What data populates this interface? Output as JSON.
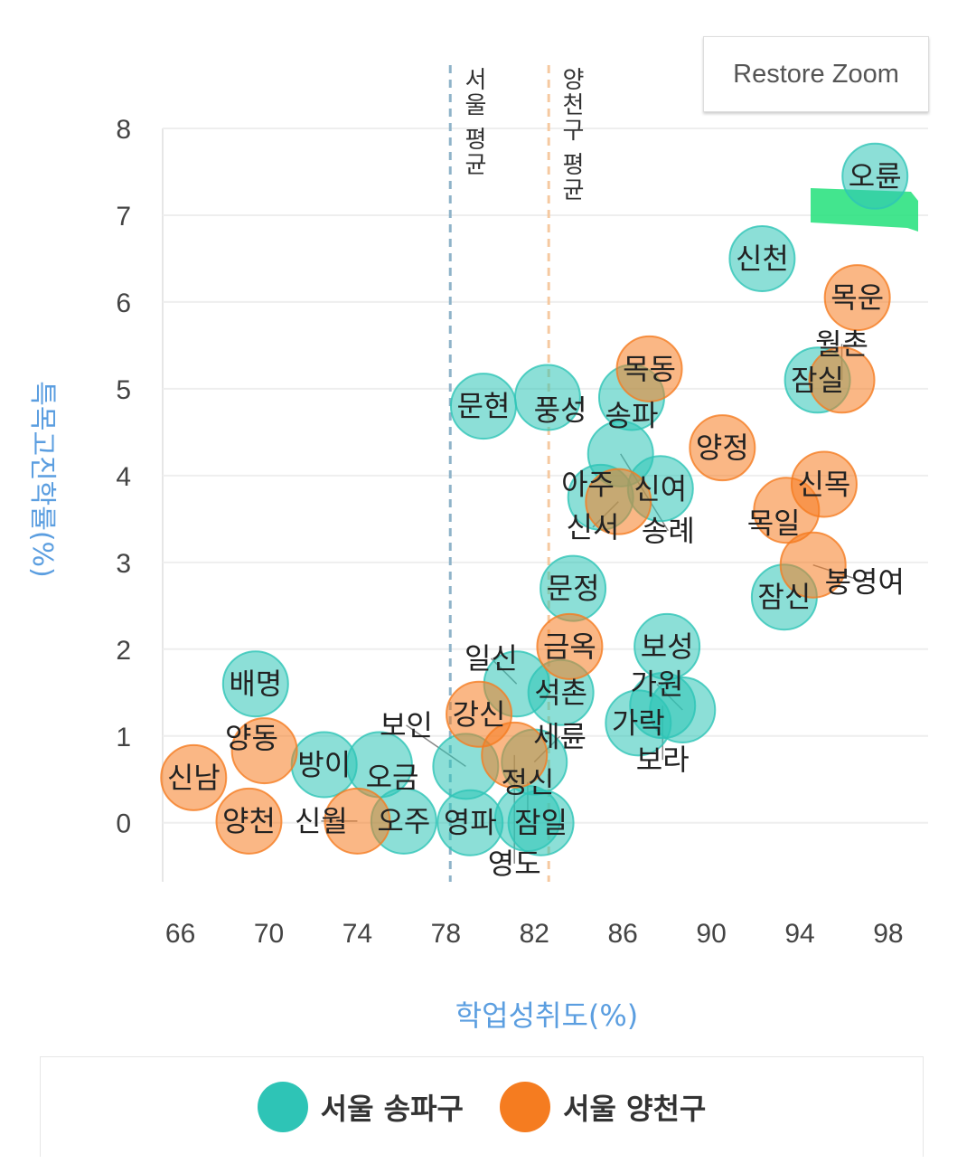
{
  "chart_data": {
    "type": "scatter",
    "xlabel": "학업성취도(%)",
    "ylabel": "특목고진학률(%)",
    "xlim": [
      65.2,
      99.8
    ],
    "ylim": [
      -0.68,
      8
    ],
    "xticks": [
      66,
      70,
      74,
      78,
      82,
      86,
      90,
      94,
      98
    ],
    "yticks": [
      0,
      1,
      2,
      3,
      4,
      5,
      6,
      7,
      8
    ],
    "grid": "horizontal",
    "legend_position": "bottom",
    "reference_lines": [
      {
        "label": "서울 평균",
        "x": 78.2,
        "color": "#8fb3c9"
      },
      {
        "label": "양천구 평균",
        "x": 82.65,
        "color": "#f5c9a0"
      }
    ],
    "series": [
      {
        "name": "서울 송파구",
        "color": "#2ec4b6",
        "points": [
          {
            "label": "오륜",
            "x": 97.4,
            "y": 7.45
          },
          {
            "label": "신천",
            "x": 92.3,
            "y": 6.5
          },
          {
            "label": "잠실",
            "x": 94.8,
            "y": 5.1
          },
          {
            "label": "문현",
            "x": 79.7,
            "y": 4.8
          },
          {
            "label": "풍성",
            "x": 82.6,
            "y": 4.9
          },
          {
            "label": "송파",
            "x": 86.4,
            "y": 4.9
          },
          {
            "label": "송례",
            "x": 85.9,
            "y": 4.25
          },
          {
            "label": "신여",
            "x": 87.7,
            "y": 3.85
          },
          {
            "label": "아주",
            "x": 85.0,
            "y": 3.75
          },
          {
            "label": "문정",
            "x": 83.75,
            "y": 2.7
          },
          {
            "label": "보성",
            "x": 88.0,
            "y": 2.03
          },
          {
            "label": "잠신",
            "x": 93.3,
            "y": 2.6
          },
          {
            "label": "가락",
            "x": 86.7,
            "y": 1.15
          },
          {
            "label": "보라",
            "x": 87.8,
            "y": 1.35
          },
          {
            "label": "가원",
            "x": 88.7,
            "y": 1.3
          },
          {
            "label": "배명",
            "x": 69.4,
            "y": 1.6
          },
          {
            "label": "방이",
            "x": 72.5,
            "y": 0.67
          },
          {
            "label": "오금",
            "x": 75.0,
            "y": 0.67
          },
          {
            "label": "오주",
            "x": 76.1,
            "y": 0.02
          },
          {
            "label": "영파",
            "x": 79.1,
            "y": 0.0
          },
          {
            "label": "정신",
            "x": 81.7,
            "y": 0.05
          },
          {
            "label": "잠일",
            "x": 82.3,
            "y": 0.0
          },
          {
            "label": "보인",
            "x": 78.9,
            "y": 0.65
          },
          {
            "label": "세륜",
            "x": 82.0,
            "y": 0.7
          },
          {
            "label": "일신",
            "x": 81.2,
            "y": 1.6
          },
          {
            "label": "석촌",
            "x": 83.2,
            "y": 1.5
          }
        ]
      },
      {
        "name": "서울 양천구",
        "color": "#f57c20",
        "points": [
          {
            "label": "목운",
            "x": 96.6,
            "y": 6.05
          },
          {
            "label": "월촌",
            "x": 95.9,
            "y": 5.1
          },
          {
            "label": "목동",
            "x": 87.2,
            "y": 5.23
          },
          {
            "label": "양정",
            "x": 90.5,
            "y": 4.32
          },
          {
            "label": "신목",
            "x": 95.1,
            "y": 3.9
          },
          {
            "label": "목일",
            "x": 93.4,
            "y": 3.6
          },
          {
            "label": "봉영여",
            "x": 94.6,
            "y": 2.97
          },
          {
            "label": "신서",
            "x": 85.8,
            "y": 3.7
          },
          {
            "label": "금옥",
            "x": 83.6,
            "y": 2.03
          },
          {
            "label": "강신",
            "x": 79.5,
            "y": 1.25
          },
          {
            "label": "영도",
            "x": 81.1,
            "y": 0.78
          },
          {
            "label": "신남",
            "x": 66.6,
            "y": 0.52
          },
          {
            "label": "양동",
            "x": 69.8,
            "y": 0.83
          },
          {
            "label": "양천",
            "x": 69.1,
            "y": 0.02
          },
          {
            "label": "신월",
            "x": 74.0,
            "y": 0.02
          }
        ]
      }
    ]
  },
  "toolbar": {
    "restore_zoom": "Restore Zoom"
  }
}
